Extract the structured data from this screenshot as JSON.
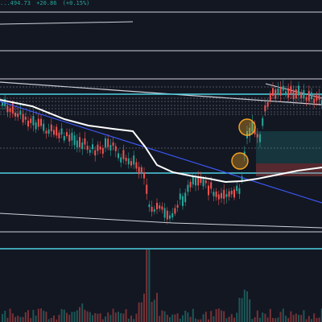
{
  "header": {
    "price_fragment": "...494.73",
    "change": "+20.86",
    "change_pct": "(+0.15%)"
  },
  "colors": {
    "background": "#131722",
    "up": "#26a69a",
    "down": "#ef5350",
    "ma": "#ffffff",
    "trendline": "#3d5afe",
    "level": "#4dd0e1",
    "marker": "#f5a623"
  },
  "chart_data": {
    "type": "candlestick",
    "grid": false,
    "overlays": [
      "moving-average",
      "trendline",
      "horizontal-levels",
      "volume",
      "position-zones"
    ]
  }
}
